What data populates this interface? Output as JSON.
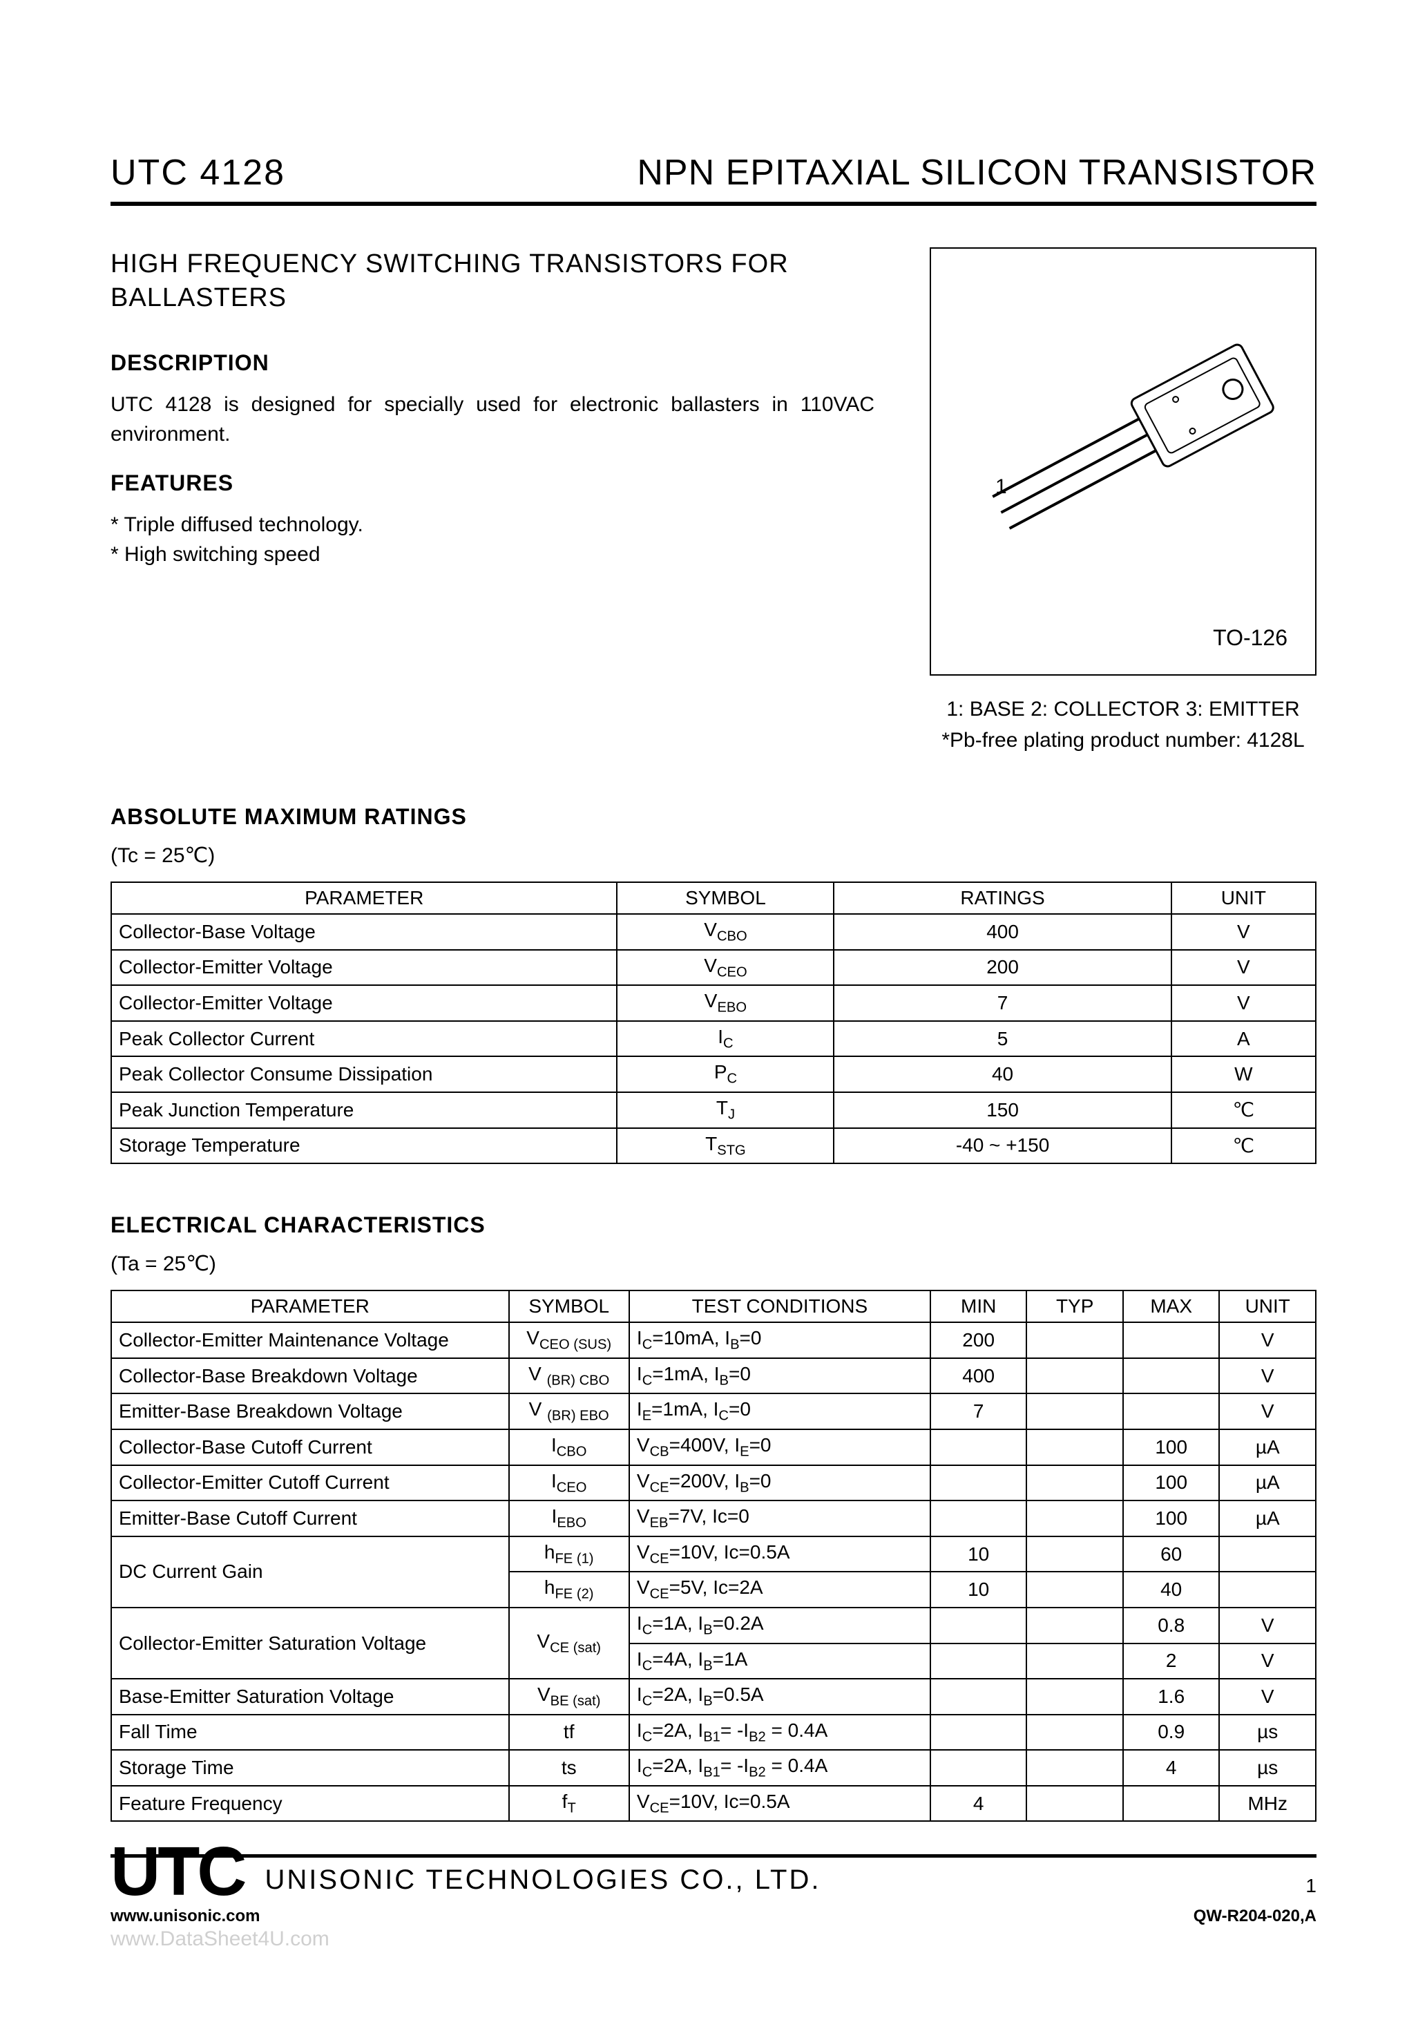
{
  "header": {
    "part_number": "UTC 4128",
    "product_title": "NPN EPITAXIAL SILICON TRANSISTOR"
  },
  "subtitle": "HIGH FREQUENCY SWITCHING TRANSISTORS FOR BALLASTERS",
  "description": {
    "heading": "DESCRIPTION",
    "text": "UTC 4128 is designed for specially used for electronic ballasters in 110VAC environment."
  },
  "features": {
    "heading": "FEATURES",
    "items": [
      "* Triple diffused technology.",
      "* High switching speed"
    ]
  },
  "package": {
    "pin1_label": "1",
    "name": "TO-126",
    "pinout": "1: BASE 2: COLLECTOR 3: EMITTER",
    "pbfree": "*Pb-free plating product number: 4128L"
  },
  "amr": {
    "heading": "ABSOLUTE MAXIMUM RATINGS",
    "condition": "(Tc = 25℃)",
    "columns": [
      "PARAMETER",
      "SYMBOL",
      "RATINGS",
      "UNIT"
    ],
    "col_widths_pct": [
      42,
      18,
      28,
      12
    ],
    "rows": [
      {
        "param": "Collector-Base Voltage",
        "sym": "V",
        "sub": "CBO",
        "rating": "400",
        "unit": "V"
      },
      {
        "param": "Collector-Emitter Voltage",
        "sym": "V",
        "sub": "CEO",
        "rating": "200",
        "unit": "V"
      },
      {
        "param": "Collector-Emitter Voltage",
        "sym": "V",
        "sub": "EBO",
        "rating": "7",
        "unit": "V"
      },
      {
        "param": "Peak Collector Current",
        "sym": "I",
        "sub": "C",
        "rating": "5",
        "unit": "A"
      },
      {
        "param": "Peak Collector Consume Dissipation",
        "sym": "P",
        "sub": "C",
        "rating": "40",
        "unit": "W"
      },
      {
        "param": "Peak Junction Temperature",
        "sym": "T",
        "sub": "J",
        "rating": "150",
        "unit": "℃"
      },
      {
        "param": "Storage Temperature",
        "sym": "T",
        "sub": "STG",
        "rating": "-40 ~ +150",
        "unit": "℃"
      }
    ]
  },
  "elec": {
    "heading": "ELECTRICAL CHARACTERISTICS",
    "condition": "(Ta = 25℃)",
    "columns": [
      "PARAMETER",
      "SYMBOL",
      "TEST CONDITIONS",
      "MIN",
      "TYP",
      "MAX",
      "UNIT"
    ],
    "col_widths_pct": [
      33,
      10,
      25,
      8,
      8,
      8,
      8
    ],
    "rows": [
      {
        "param": "Collector-Emitter Maintenance Voltage",
        "sym": "V",
        "sub": "CEO (SUS)",
        "cond_html": "I<span class='sub'>C</span>=10mA, I<span class='sub'>B</span>=0",
        "min": "200",
        "typ": "",
        "max": "",
        "unit": "V",
        "rowspan": 1
      },
      {
        "param": "Collector-Base Breakdown Voltage",
        "sym": "V ",
        "sub": "(BR) CBO",
        "cond_html": "I<span class='sub'>C</span>=1mA, I<span class='sub'>B</span>=0",
        "min": "400",
        "typ": "",
        "max": "",
        "unit": "V",
        "rowspan": 1
      },
      {
        "param": "Emitter-Base Breakdown Voltage",
        "sym": "V ",
        "sub": "(BR) EBO",
        "cond_html": "I<span class='sub'>E</span>=1mA, I<span class='sub'>C</span>=0",
        "min": "7",
        "typ": "",
        "max": "",
        "unit": "V",
        "rowspan": 1
      },
      {
        "param": "Collector-Base Cutoff Current",
        "sym": "I",
        "sub": "CBO",
        "cond_html": "V<span class='sub'>CB</span>=400V, I<span class='sub'>E</span>=0",
        "min": "",
        "typ": "",
        "max": "100",
        "unit": "µA",
        "rowspan": 1
      },
      {
        "param": "Collector-Emitter Cutoff Current",
        "sym": "I",
        "sub": "CEO",
        "cond_html": "V<span class='sub'>CE</span>=200V, I<span class='sub'>B</span>=0",
        "min": "",
        "typ": "",
        "max": "100",
        "unit": "µA",
        "rowspan": 1
      },
      {
        "param": "Emitter-Base Cutoff Current",
        "sym": "I",
        "sub": "EBO",
        "cond_html": "V<span class='sub'>EB</span>=7V, Ic=0",
        "min": "",
        "typ": "",
        "max": "100",
        "unit": "µA",
        "rowspan": 1
      },
      {
        "param": "DC Current Gain",
        "sym": "h",
        "sub": "FE (1)",
        "cond_html": "V<span class='sub'>CE</span>=10V, Ic=0.5A",
        "min": "10",
        "typ": "",
        "max": "60",
        "unit": "",
        "rowspan": 2
      },
      {
        "param": "",
        "sym": "h",
        "sub": "FE (2)",
        "cond_html": "V<span class='sub'>CE</span>=5V, Ic=2A",
        "min": "10",
        "typ": "",
        "max": "40",
        "unit": "",
        "rowspan": 0
      },
      {
        "param": "Collector-Emitter Saturation Voltage",
        "sym": "V",
        "sub": "CE (sat)",
        "cond_html": "I<span class='sub'>C</span>=1A, I<span class='sub'>B</span>=0.2A",
        "min": "",
        "typ": "",
        "max": "0.8",
        "unit": "V",
        "rowspan": 2,
        "symrowspan": 2
      },
      {
        "param": "",
        "sym": "",
        "sub": "",
        "cond_html": "I<span class='sub'>C</span>=4A, I<span class='sub'>B</span>=1A",
        "min": "",
        "typ": "",
        "max": "2",
        "unit": "V",
        "rowspan": 0,
        "symrowspan": 0
      },
      {
        "param": "Base-Emitter Saturation Voltage",
        "sym": "V",
        "sub": "BE (sat)",
        "cond_html": "I<span class='sub'>C</span>=2A, I<span class='sub'>B</span>=0.5A",
        "min": "",
        "typ": "",
        "max": "1.6",
        "unit": "V",
        "rowspan": 1
      },
      {
        "param": "Fall Time",
        "sym": "tf",
        "sub": "",
        "cond_html": "I<span class='sub'>C</span>=2A, I<span class='sub'>B1</span>= -I<span class='sub'>B2</span> = 0.4A",
        "min": "",
        "typ": "",
        "max": "0.9",
        "unit": "µs",
        "rowspan": 1
      },
      {
        "param": "Storage Time",
        "sym": "ts",
        "sub": "",
        "cond_html": "I<span class='sub'>C</span>=2A, I<span class='sub'>B1</span>= -I<span class='sub'>B2</span> = 0.4A",
        "min": "",
        "typ": "",
        "max": "4",
        "unit": "µs",
        "rowspan": 1
      },
      {
        "param": "Feature Frequency",
        "sym": "f",
        "sub": "T",
        "cond_html": "V<span class='sub'>CE</span>=10V, Ic=0.5A",
        "min": "4",
        "typ": "",
        "max": "",
        "unit": "MHz",
        "rowspan": 1
      }
    ]
  },
  "footer": {
    "logo": "UTC",
    "company": "UNISONIC TECHNOLOGIES    CO., LTD.",
    "page": "1",
    "url": "www.unisonic.com",
    "doc": "QW-R204-020,A",
    "watermark": "www.DataSheet4U.com"
  },
  "styling": {
    "page_bg": "#ffffff",
    "text_color": "#000000",
    "rule_color": "#000000",
    "watermark_color": "#cfcfcf",
    "font_family": "Arial, Helvetica, sans-serif",
    "part_fontsize": 52,
    "title_fontsize": 52,
    "subtitle_fontsize": 38,
    "section_head_fontsize": 32,
    "body_fontsize": 30,
    "table_fontsize": 28,
    "logo_fontsize": 100,
    "company_fontsize": 40
  }
}
